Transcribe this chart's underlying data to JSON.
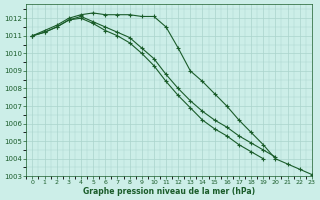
{
  "title": "",
  "xlabel": "Graphe pression niveau de la mer (hPa)",
  "bg_color": "#cceee8",
  "grid_color": "#aad4cc",
  "line_color": "#1a5c2a",
  "ylim": [
    1003,
    1012.8
  ],
  "xlim": [
    -0.5,
    23
  ],
  "yticks": [
    1003,
    1004,
    1005,
    1006,
    1007,
    1008,
    1009,
    1010,
    1011,
    1012
  ],
  "xticks": [
    0,
    1,
    2,
    3,
    4,
    5,
    6,
    7,
    8,
    9,
    10,
    11,
    12,
    13,
    14,
    15,
    16,
    17,
    18,
    19,
    20,
    21,
    22,
    23
  ],
  "series": [
    [
      1011.0,
      1011.3,
      1011.6,
      1012.0,
      1012.2,
      1012.3,
      1012.2,
      1012.2,
      1012.2,
      1012.1,
      1012.1,
      1011.5,
      1010.3,
      1009.0,
      1008.4,
      1007.7,
      1007.0,
      1006.2,
      1005.5,
      1004.8,
      1004.0,
      1003.7,
      1003.4,
      1003.1
    ],
    [
      1011.0,
      1011.2,
      1011.5,
      1011.9,
      1012.1,
      1011.8,
      1011.5,
      1011.2,
      1010.9,
      1010.3,
      1009.7,
      1008.8,
      1008.0,
      1007.3,
      1006.7,
      1006.2,
      1005.8,
      1005.3,
      1004.9,
      1004.5,
      1004.1,
      null,
      null,
      null
    ],
    [
      1011.0,
      1011.2,
      1011.5,
      1011.9,
      1012.0,
      1011.7,
      1011.3,
      1011.0,
      1010.6,
      1010.0,
      1009.3,
      1008.4,
      1007.6,
      1006.9,
      1006.2,
      1005.7,
      1005.3,
      1004.8,
      1004.4,
      1004.0,
      null,
      null,
      null,
      null
    ]
  ]
}
